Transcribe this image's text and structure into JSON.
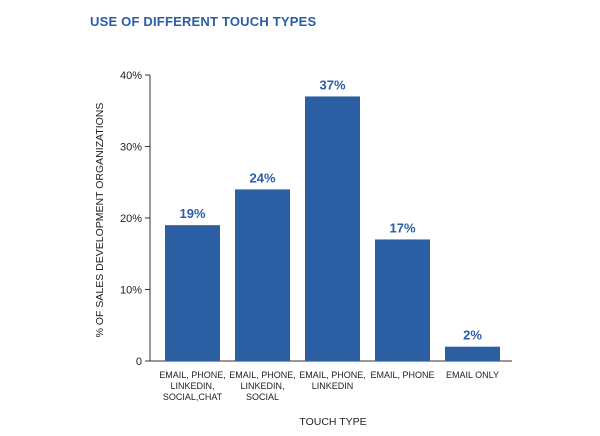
{
  "chart_data": {
    "type": "bar",
    "title": "USE OF DIFFERENT TOUCH TYPES",
    "xlabel": "TOUCH TYPE",
    "ylabel": "% OF SALES DEVELOPMENT ORGANIZATIONS",
    "ylim": [
      0,
      40
    ],
    "yticks": [
      0,
      10,
      20,
      30,
      40
    ],
    "ytick_labels": [
      "0",
      "10%",
      "20%",
      "30%",
      "40%"
    ],
    "categories": [
      [
        "EMAIL, PHONE,",
        "LINKEDIN,",
        "SOCIAL,CHAT"
      ],
      [
        "EMAIL, PHONE,",
        "LINKEDIN,",
        "SOCIAL"
      ],
      [
        "EMAIL, PHONE,",
        "LINKEDIN"
      ],
      [
        "EMAIL, PHONE"
      ],
      [
        "EMAIL ONLY"
      ]
    ],
    "values": [
      19,
      24,
      37,
      17,
      2
    ],
    "data_labels": [
      "19%",
      "24%",
      "37%",
      "17%",
      "2%"
    ],
    "bar_color": "#2b5ea3",
    "label_color": "#2a5da8",
    "grid": false,
    "legend": "none"
  }
}
